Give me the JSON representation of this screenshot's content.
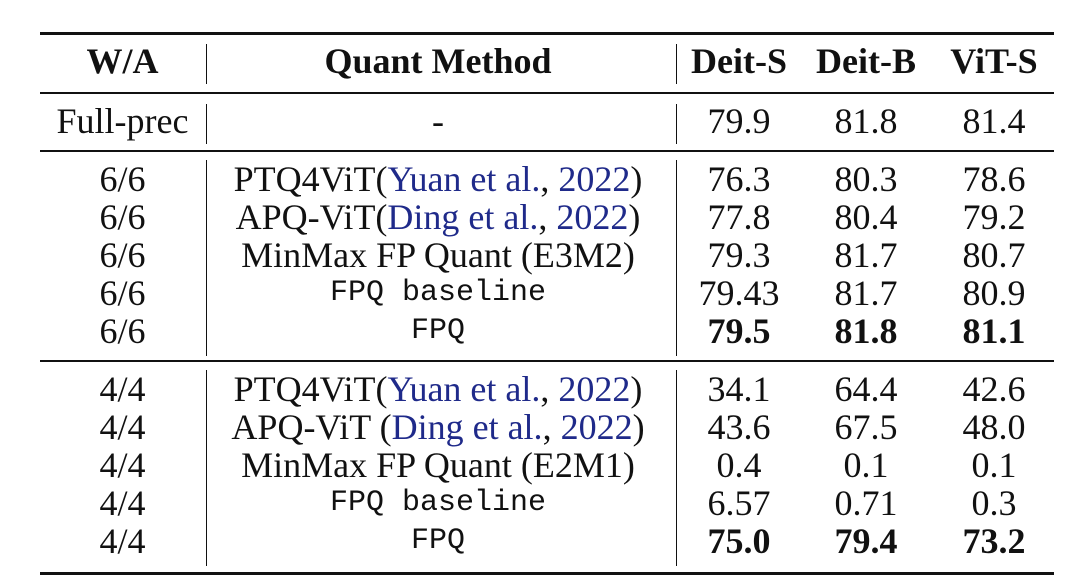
{
  "header": {
    "wa": "W/A",
    "method": "Quant Method",
    "col1": "Deit-S",
    "col2": "Deit-B",
    "col3": "ViT-S"
  },
  "full_prec": {
    "wa": "Full-prec",
    "method": "-",
    "v1": "79.9",
    "v2": "81.8",
    "v3": "81.4"
  },
  "groups": [
    {
      "rows": [
        {
          "wa": "6/6",
          "method": "PTQ4ViT(",
          "cite_author": "Yuan et al.",
          "cite_sep": ", ",
          "cite_year": "2022",
          "close": ")",
          "v1": "76.3",
          "v2": "80.3",
          "v3": "78.6"
        },
        {
          "wa": "6/6",
          "method": "APQ-ViT(",
          "cite_author": "Ding et al.",
          "cite_sep": ", ",
          "cite_year": "2022",
          "close": ")",
          "v1": "77.8",
          "v2": "80.4",
          "v3": "79.2"
        },
        {
          "wa": "6/6",
          "method": "MinMax FP Quant (E3M2)",
          "v1": "79.3",
          "v2": "81.7",
          "v3": "80.7"
        },
        {
          "wa": "6/6",
          "method": "FPQ baseline",
          "v1": "79.43",
          "v2": "81.7",
          "v3": "80.9"
        },
        {
          "wa": "6/6",
          "method": "FPQ",
          "v1": "79.5",
          "v2": "81.8",
          "v3": "81.1"
        }
      ]
    },
    {
      "rows": [
        {
          "wa": "4/4",
          "method": "PTQ4ViT(",
          "cite_author": "Yuan et al.",
          "cite_sep": ", ",
          "cite_year": "2022",
          "close": ")",
          "v1": "34.1",
          "v2": "64.4",
          "v3": "42.6"
        },
        {
          "wa": "4/4",
          "method": "APQ-ViT (",
          "cite_author": "Ding et al.",
          "cite_sep": ", ",
          "cite_year": "2022",
          "close": ")",
          "v1": "43.6",
          "v2": "67.5",
          "v3": "48.0"
        },
        {
          "wa": "4/4",
          "method": "MinMax FP Quant (E2M1)",
          "v1": "0.4",
          "v2": "0.1",
          "v3": "0.1"
        },
        {
          "wa": "4/4",
          "method": "FPQ baseline",
          "v1": "6.57",
          "v2": "0.71",
          "v3": "0.3"
        },
        {
          "wa": "4/4",
          "method": "FPQ",
          "v1": "75.0",
          "v2": "79.4",
          "v3": "73.2"
        }
      ]
    }
  ]
}
